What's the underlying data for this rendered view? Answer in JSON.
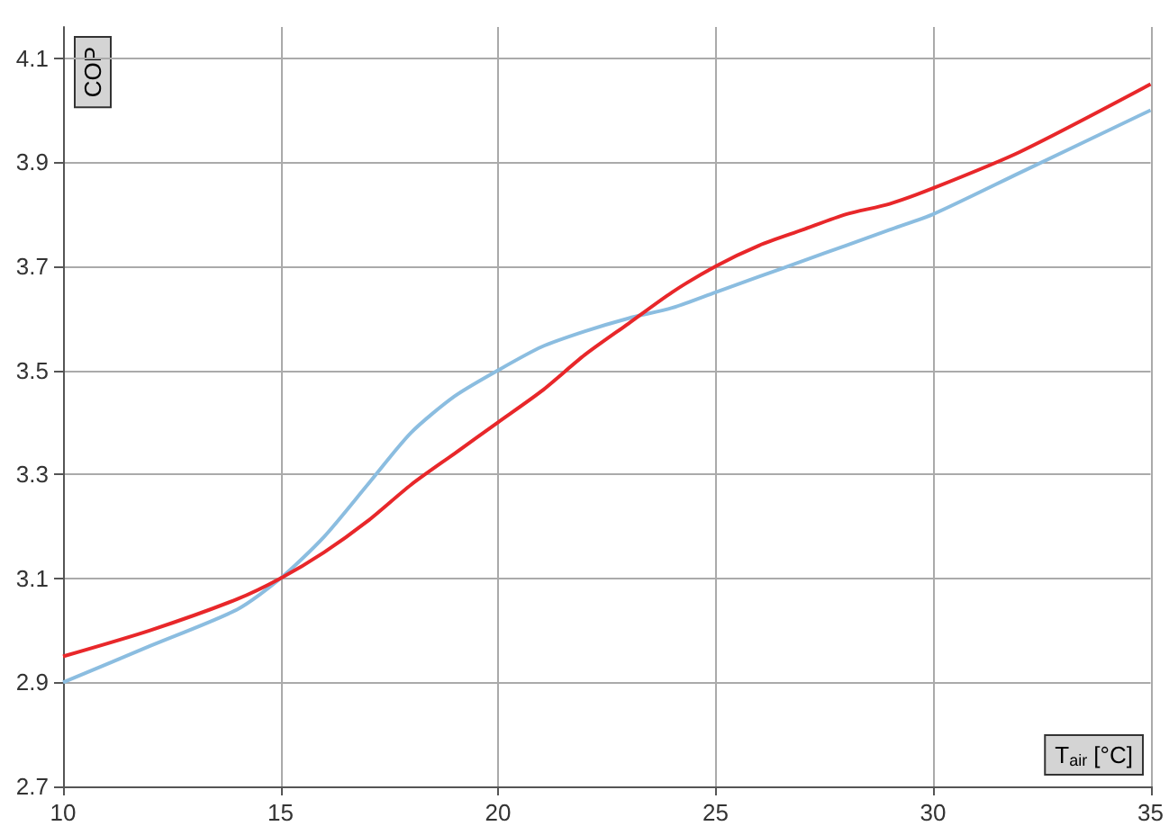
{
  "chart_data": {
    "type": "line",
    "xlabel": "T$_{air}$ [°C]",
    "ylabel": "COP",
    "x": [
      10,
      12,
      14,
      15,
      16,
      17,
      18,
      19,
      20,
      21,
      22,
      23,
      24,
      25,
      26,
      27,
      28,
      29,
      30,
      32,
      35
    ],
    "series": [
      {
        "color": "#8bbde0",
        "values": [
          2.9,
          2.97,
          3.04,
          3.1,
          3.18,
          3.28,
          3.38,
          3.45,
          3.5,
          3.545,
          3.575,
          3.6,
          3.62,
          3.65,
          3.68,
          3.71,
          3.74,
          3.77,
          3.8,
          3.88,
          4.0
        ]
      },
      {
        "color": "#e8272a",
        "values": [
          2.95,
          3.0,
          3.06,
          3.1,
          3.15,
          3.21,
          3.28,
          3.34,
          3.4,
          3.46,
          3.53,
          3.59,
          3.65,
          3.7,
          3.74,
          3.77,
          3.8,
          3.82,
          3.85,
          3.92,
          4.05
        ]
      }
    ],
    "xlim": [
      10,
      35
    ],
    "xticks": [
      10,
      15,
      20,
      25,
      30,
      35
    ],
    "ylim": [
      2.7,
      4.16
    ],
    "yticks": [
      2.7,
      2.9,
      3.1,
      3.3,
      3.5,
      3.7,
      3.9,
      4.1
    ],
    "grid": true,
    "marker": "none",
    "line_style": "solid"
  }
}
